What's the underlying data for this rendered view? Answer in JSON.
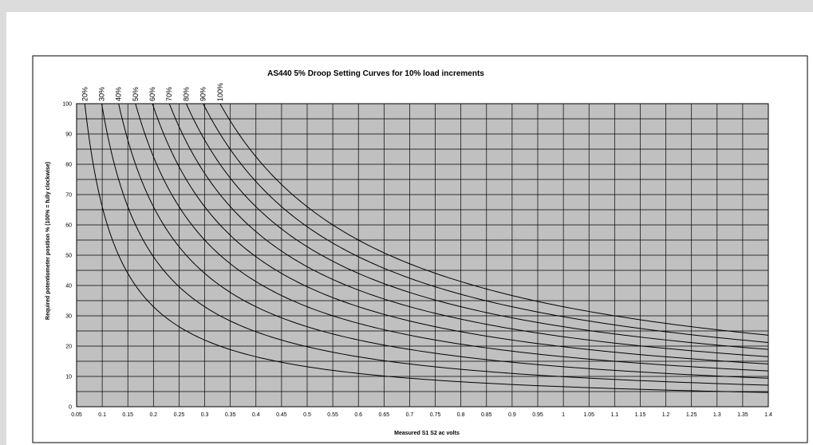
{
  "chart_data": {
    "type": "line",
    "title": "AS440 5% Droop Setting Curves for 10% load increments",
    "xlabel": "Measured S1 S2 ac volts",
    "ylabel": "Required potentiometer position % (100% = fully clockwise)",
    "xlim": [
      0.05,
      1.4
    ],
    "ylim": [
      0,
      100
    ],
    "x_ticks": [
      "0.05",
      "0.1",
      "0.15",
      "0.2",
      "0.25",
      "0.3",
      "0.35",
      "0.4",
      "0.45",
      "0.5",
      "0.55",
      "0.6",
      "0.65",
      "0.7",
      "0.75",
      "0.8",
      "0.85",
      "0.9",
      "0.95",
      "1",
      "1.05",
      "1.1",
      "1.15",
      "1.2",
      "1.25",
      "1.3",
      "1.35",
      "1.4"
    ],
    "y_ticks": [
      "0",
      "10",
      "20",
      "30",
      "40",
      "50",
      "60",
      "70",
      "80",
      "90",
      "100"
    ],
    "grid": true,
    "plot_background": "#c0c0c0",
    "line_color": "#000000",
    "series": [
      {
        "name": "20%",
        "x": [
          0.066,
          0.08,
          0.1,
          0.15,
          0.2,
          0.3,
          0.5,
          0.7,
          1.0,
          1.4
        ],
        "y": [
          100,
          82.5,
          66,
          44,
          33,
          22,
          13.2,
          9.4,
          6.6,
          4.7
        ]
      },
      {
        "name": "30%",
        "x": [
          0.099,
          0.12,
          0.15,
          0.2,
          0.3,
          0.5,
          0.7,
          1.0,
          1.4
        ],
        "y": [
          100,
          82.5,
          66,
          49.5,
          33,
          19.8,
          14.1,
          9.9,
          7.1
        ]
      },
      {
        "name": "40%",
        "x": [
          0.132,
          0.15,
          0.2,
          0.25,
          0.3,
          0.5,
          0.7,
          1.0,
          1.4
        ],
        "y": [
          100,
          88,
          66,
          52.8,
          44,
          26.4,
          18.9,
          13.2,
          9.4
        ]
      },
      {
        "name": "50%",
        "x": [
          0.165,
          0.2,
          0.25,
          0.3,
          0.4,
          0.5,
          0.7,
          1.0,
          1.4
        ],
        "y": [
          100,
          82.5,
          66,
          55,
          41.3,
          33,
          23.6,
          16.5,
          11.8
        ]
      },
      {
        "name": "60%",
        "x": [
          0.198,
          0.25,
          0.3,
          0.4,
          0.5,
          0.7,
          1.0,
          1.4
        ],
        "y": [
          100,
          79.2,
          66,
          49.5,
          39.6,
          28.3,
          19.8,
          14.1
        ]
      },
      {
        "name": "70%",
        "x": [
          0.231,
          0.3,
          0.4,
          0.5,
          0.6,
          0.8,
          1.0,
          1.4
        ],
        "y": [
          100,
          77,
          57.8,
          46.2,
          38.5,
          28.9,
          23.1,
          16.5
        ]
      },
      {
        "name": "80%",
        "x": [
          0.264,
          0.3,
          0.4,
          0.5,
          0.6,
          0.8,
          1.0,
          1.4
        ],
        "y": [
          100,
          88,
          66,
          52.8,
          44,
          33,
          26.4,
          18.9
        ]
      },
      {
        "name": "90%",
        "x": [
          0.297,
          0.35,
          0.4,
          0.5,
          0.6,
          0.8,
          1.0,
          1.4
        ],
        "y": [
          100,
          84.9,
          74.3,
          59.4,
          49.5,
          37.1,
          29.7,
          21.2
        ]
      },
      {
        "name": "100%",
        "x": [
          0.33,
          0.4,
          0.5,
          0.6,
          0.8,
          1.0,
          1.2,
          1.4
        ],
        "y": [
          100,
          82.5,
          66,
          55,
          41.3,
          33,
          27.5,
          23.6
        ]
      }
    ]
  }
}
